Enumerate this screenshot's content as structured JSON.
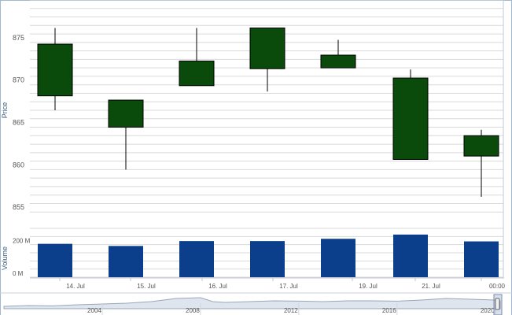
{
  "chart_data": [
    {
      "type": "candlestick",
      "ylabel": "Price",
      "ylim": [
        854,
        880
      ],
      "yticks": [
        855,
        860,
        865,
        870,
        875
      ],
      "x_tick_labels": [
        "14. Jul",
        "15. Jul",
        "16. Jul",
        "17. Jul",
        "19. Jul",
        "21. Jul",
        "00:00"
      ],
      "colors": {
        "up": "#0a4a0a",
        "down": "#ff0000",
        "grid": "#d9d9d9"
      },
      "candles": [
        {
          "open": 868.7,
          "high": 876.7,
          "low": 867.0,
          "close": 874.8
        },
        {
          "open": 865.0,
          "high": 868.2,
          "low": 860.0,
          "close": 868.2
        },
        {
          "open": 869.9,
          "high": 876.7,
          "low": 869.9,
          "close": 872.8
        },
        {
          "open": 871.9,
          "high": 876.7,
          "low": 869.2,
          "close": 876.7
        },
        {
          "open": 872.0,
          "high": 875.3,
          "low": 872.0,
          "close": 873.5
        },
        {
          "open": 861.2,
          "high": 871.8,
          "low": 861.2,
          "close": 870.8
        },
        {
          "open": 861.6,
          "high": 864.7,
          "low": 856.8,
          "close": 864.0
        }
      ]
    },
    {
      "type": "bar",
      "ylabel": "Volume",
      "yticks": [
        {
          "value": 0,
          "label": "0 M"
        },
        {
          "value": 200,
          "label": "200 M"
        }
      ],
      "ylim": [
        0,
        300
      ],
      "color": "#0b3f8c",
      "values": [
        205,
        192,
        222,
        222,
        236,
        262,
        220
      ]
    },
    {
      "type": "area",
      "role": "navigator",
      "x_tick_labels": [
        "2004",
        "2008",
        "2012",
        "2016",
        "2020"
      ],
      "x_range": [
        2000,
        2020.2
      ],
      "profile": [
        [
          2000,
          0.15
        ],
        [
          2001,
          0.2
        ],
        [
          2002,
          0.18
        ],
        [
          2003,
          0.25
        ],
        [
          2004,
          0.3
        ],
        [
          2005,
          0.35
        ],
        [
          2006,
          0.45
        ],
        [
          2007,
          0.65
        ],
        [
          2008,
          0.7
        ],
        [
          2008.5,
          0.45
        ],
        [
          2009,
          0.4
        ],
        [
          2010,
          0.45
        ],
        [
          2011,
          0.5
        ],
        [
          2012,
          0.48
        ],
        [
          2013,
          0.45
        ],
        [
          2014,
          0.5
        ],
        [
          2015,
          0.5
        ],
        [
          2016,
          0.48
        ],
        [
          2017,
          0.55
        ],
        [
          2018,
          0.65
        ],
        [
          2019,
          0.6
        ],
        [
          2020,
          0.55
        ],
        [
          2020.2,
          0.5
        ]
      ]
    }
  ]
}
